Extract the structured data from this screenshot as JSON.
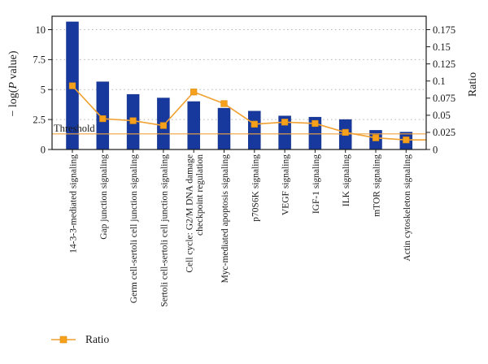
{
  "chart_data": {
    "type": "bar",
    "subtype": "dual-axis bar with line overlay (pathway enrichment)",
    "categories": [
      "14-3-3-mediated signaling",
      "Gap junction signaling",
      "Germ cell-sertoli cell junction signaling",
      "Sertoli cell-sertoli cell junction signaling",
      "Cell cycle: G2/M DNA damage\ncheckpoint regulation",
      "Myc-mediated apoptosis signaling",
      "p70S6K signaling",
      "VEGF signaling",
      "IGF-1 signaling",
      "ILK signaling",
      "mTOR signaling",
      "Actin cytoskeleton signaling"
    ],
    "series": [
      {
        "name": "-log(P value)",
        "type": "bar",
        "axis": "left",
        "values": [
          10.65,
          5.65,
          4.6,
          4.3,
          4.0,
          3.45,
          3.2,
          2.8,
          2.7,
          2.5,
          1.6,
          1.45
        ],
        "color": "#17399e",
        "edge_color": "#122f85"
      },
      {
        "name": "Ratio",
        "type": "line",
        "axis": "right",
        "marker": "square",
        "values": [
          0.093,
          0.045,
          0.042,
          0.035,
          0.084,
          0.067,
          0.037,
          0.04,
          0.038,
          0.025,
          0.017,
          0.014
        ],
        "color": "#f6a01c",
        "line_color": "#f0a131",
        "marker_edge_color": "#dd8d10"
      }
    ],
    "left_axis": {
      "title_prefix": "− log(",
      "title_italic": "P",
      "title_suffix": " value)",
      "ticks": [
        0,
        2.5,
        5,
        7.5,
        10
      ],
      "max": 11.12
    },
    "right_axis": {
      "title": "Ratio",
      "ticks": [
        0,
        0.025,
        0.05,
        0.075,
        0.1,
        0.125,
        0.15,
        0.175
      ],
      "max": 0.1946
    },
    "threshold": {
      "value": 1.3,
      "label": "Threshold",
      "color": "#f0a43f"
    },
    "legend": [
      {
        "label": "Ratio"
      }
    ],
    "grid": {
      "dotted_at_left_ticks": [
        2.5,
        5,
        7.5,
        10
      ],
      "color": "#b3b3b3"
    },
    "frame_color": "#1a1a1a"
  }
}
